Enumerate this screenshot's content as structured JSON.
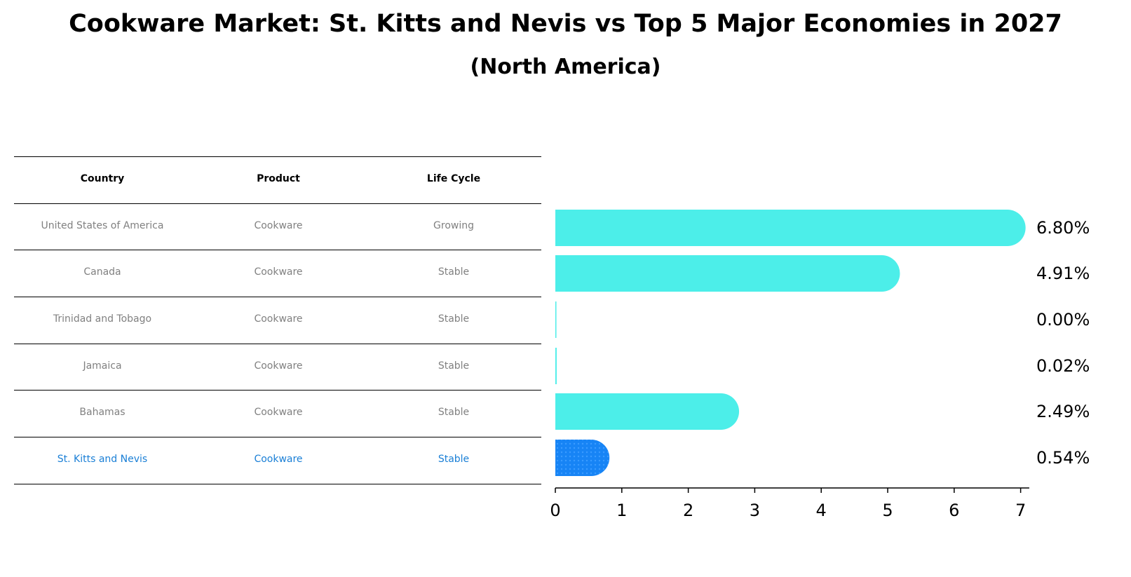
{
  "title": "Cookware Market: St. Kitts and Nevis vs Top 5 Major Economies in 2027",
  "subtitle": "(North America)",
  "table": {
    "headers": [
      "Country",
      "Product",
      "Life Cycle"
    ],
    "rows": [
      [
        "United States of America",
        "Cookware",
        "Growing"
      ],
      [
        "Canada",
        "Cookware",
        "Stable"
      ],
      [
        "Trinidad and Tobago",
        "Cookware",
        "Stable"
      ],
      [
        "Jamaica",
        "Cookware",
        "Stable"
      ],
      [
        "Bahamas",
        "Cookware",
        "Stable"
      ],
      [
        "St. Kitts and Nevis",
        "Cookware",
        "Stable"
      ]
    ]
  },
  "colors": {
    "bar": "#4ceee9",
    "highlight": "#1784f5",
    "highlight_text": "#1a7fd6",
    "other_text": "#808080"
  },
  "chart_data": {
    "type": "bar",
    "orientation": "horizontal",
    "categories": [
      "United States of America",
      "Canada",
      "Trinidad and Tobago",
      "Jamaica",
      "Bahamas",
      "St. Kitts and Nevis"
    ],
    "values": [
      6.8,
      4.91,
      0.0,
      0.02,
      2.49,
      0.54
    ],
    "value_labels": [
      "6.80%",
      "4.91%",
      "0.00%",
      "0.02%",
      "2.49%",
      "0.54%"
    ],
    "highlight_index": 5,
    "xlim": [
      0,
      7.13
    ],
    "xticks": [
      0,
      1,
      2,
      3,
      4,
      5,
      6,
      7
    ],
    "grid": false
  }
}
